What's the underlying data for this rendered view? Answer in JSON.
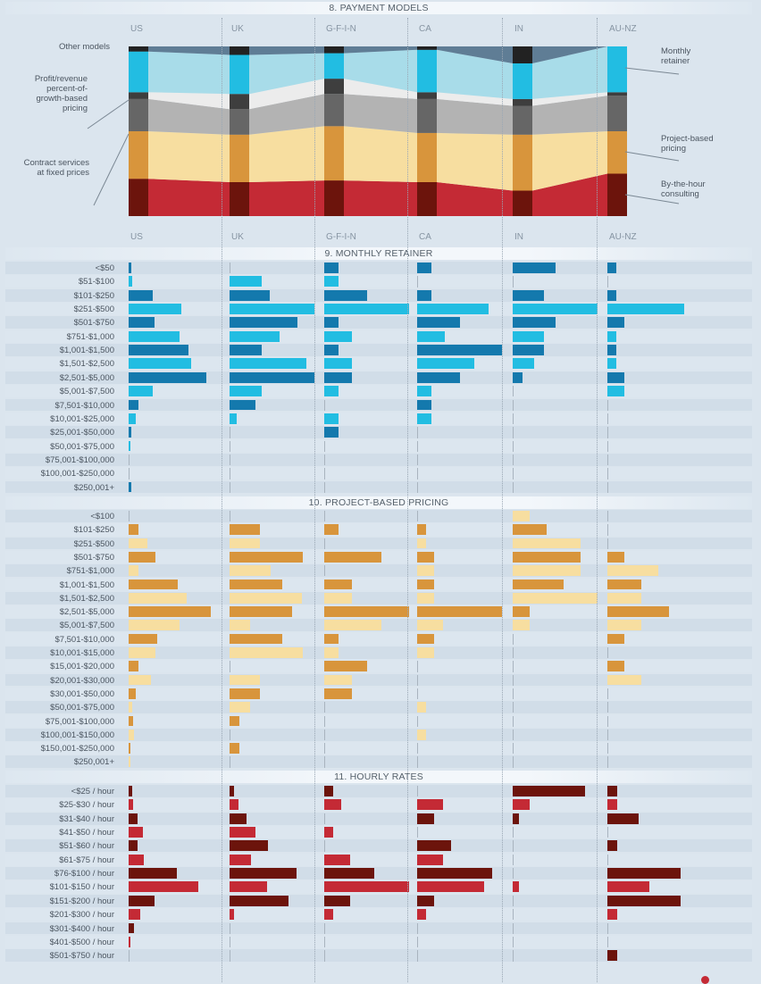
{
  "columns": [
    "US",
    "UK",
    "G-F-I-N",
    "CA",
    "IN",
    "AU-NZ"
  ],
  "colors": {
    "retainer_dark": "#1479ad",
    "retainer_light": "#22bde2",
    "project_dark": "#d8953c",
    "project_light": "#f7dea0",
    "hourly_dark": "#6c140c",
    "hourly_light": "#c42a35",
    "background": "#dbe5ee"
  },
  "payment_models": {
    "title": "8. PAYMENT MODELS",
    "labels": {
      "other": "Other models",
      "profit": [
        "Profit/revenue",
        "percent-of-",
        "growth-based",
        "pricing"
      ],
      "contract": [
        "Contract services",
        "at fixed prices"
      ],
      "monthly": [
        "Monthly",
        "retainer"
      ],
      "project": [
        "Project-based",
        "pricing"
      ],
      "hourly": [
        "By-the-hour",
        "consulting"
      ]
    }
  },
  "chart_data": [
    {
      "type": "area",
      "title": "8. PAYMENT MODELS",
      "categories": [
        "US",
        "UK",
        "G-F-I-N",
        "CA",
        "IN",
        "AU-NZ"
      ],
      "unit": "percent of respondents (estimated)",
      "series": [
        {
          "name": "By-the-hour consulting",
          "values": [
            22,
            20,
            21,
            20,
            15,
            25
          ]
        },
        {
          "name": "Project-based pricing",
          "values": [
            28,
            28,
            32,
            29,
            33,
            25
          ]
        },
        {
          "name": "Contract services at fixed prices",
          "values": [
            19,
            15,
            19,
            20,
            17,
            21
          ]
        },
        {
          "name": "Profit/revenue percent-of-growth-based pricing",
          "values": [
            4,
            9,
            9,
            4,
            4,
            2
          ]
        },
        {
          "name": "Monthly retainer",
          "values": [
            24,
            23,
            15,
            25,
            21,
            27
          ]
        },
        {
          "name": "Other models",
          "values": [
            3,
            5,
            4,
            2,
            10,
            0
          ]
        }
      ]
    },
    {
      "type": "bar",
      "title": "9. MONTHLY RETAINER",
      "categories": [
        "<$50",
        "$51-$100",
        "$101-$250",
        "$251-$500",
        "$501-$750",
        "$751-$1,000",
        "$1,001-$1,500",
        "$1,501-$2,500",
        "$2,501-$5,000",
        "$5,001-$7,500",
        "$7,501-$10,000",
        "$10,001-$25,000",
        "$25,001-$50,000",
        "$50,001-$75,000",
        "$75,001-$100,000",
        "$100,001-$250,000",
        "$250,001+"
      ],
      "unit": "relative share (0-100 of column max width)",
      "series": [
        {
          "name": "US",
          "values": [
            3,
            4,
            28,
            62,
            30,
            60,
            70,
            74,
            92,
            28,
            12,
            8,
            3,
            2,
            0,
            0,
            3
          ]
        },
        {
          "name": "UK",
          "values": [
            0,
            38,
            47,
            100,
            80,
            59,
            38,
            90,
            100,
            38,
            30,
            8,
            0,
            0,
            0,
            0,
            0
          ]
        },
        {
          "name": "G-F-I-N",
          "values": [
            17,
            17,
            50,
            100,
            17,
            33,
            17,
            33,
            33,
            17,
            0,
            17,
            17,
            0,
            0,
            0,
            0
          ]
        },
        {
          "name": "CA",
          "values": [
            17,
            0,
            17,
            84,
            50,
            33,
            100,
            67,
            50,
            17,
            17,
            17,
            0,
            0,
            0,
            0,
            0
          ]
        },
        {
          "name": "IN",
          "values": [
            50,
            0,
            37,
            100,
            50,
            37,
            37,
            25,
            12,
            0,
            0,
            0,
            0,
            0,
            0,
            0,
            0
          ]
        },
        {
          "name": "AU-NZ",
          "values": [
            10,
            0,
            10,
            90,
            20,
            10,
            10,
            10,
            20,
            20,
            0,
            0,
            0,
            0,
            0,
            0,
            0
          ]
        }
      ]
    },
    {
      "type": "bar",
      "title": "10. PROJECT-BASED PRICING",
      "categories": [
        "<$100",
        "$101-$250",
        "$251-$500",
        "$501-$750",
        "$751-$1,000",
        "$1,001-$1,500",
        "$1,501-$2,500",
        "$2,501-$5,000",
        "$5,001-$7,500",
        "$7,501-$10,000",
        "$10,001-$15,000",
        "$15,001-$20,000",
        "$20,001-$30,000",
        "$30,001-$50,000",
        "$50,001-$75,000",
        "$75,001-$100,000",
        "$100,001-$150,000",
        "$150,001-$250,000",
        "$250,001+"
      ],
      "unit": "relative share (0-100 of column max width)",
      "series": [
        {
          "name": "US",
          "values": [
            0,
            12,
            22,
            32,
            12,
            58,
            68,
            97,
            60,
            34,
            32,
            12,
            26,
            8,
            4,
            5,
            6,
            2,
            2
          ]
        },
        {
          "name": "UK",
          "values": [
            0,
            36,
            36,
            86,
            48,
            62,
            85,
            74,
            24,
            62,
            86,
            0,
            36,
            36,
            24,
            12,
            0,
            12,
            0
          ]
        },
        {
          "name": "G-F-I-N",
          "values": [
            0,
            17,
            0,
            67,
            0,
            33,
            33,
            100,
            67,
            17,
            17,
            50,
            33,
            33,
            0,
            0,
            0,
            0,
            0
          ]
        },
        {
          "name": "CA",
          "values": [
            0,
            10,
            10,
            20,
            20,
            20,
            20,
            100,
            30,
            20,
            20,
            0,
            0,
            0,
            10,
            0,
            10,
            0,
            0
          ]
        },
        {
          "name": "IN",
          "values": [
            20,
            40,
            80,
            80,
            80,
            60,
            100,
            20,
            20,
            0,
            0,
            0,
            0,
            0,
            0,
            0,
            0,
            0,
            0
          ]
        },
        {
          "name": "AU-NZ",
          "values": [
            0,
            0,
            0,
            20,
            60,
            40,
            40,
            73,
            40,
            20,
            0,
            20,
            40,
            0,
            0,
            0,
            0,
            0,
            0
          ]
        }
      ]
    },
    {
      "type": "bar",
      "title": "11. HOURLY RATES",
      "categories": [
        "<$25 / hour",
        "$25-$30 / hour",
        "$31-$40 / hour",
        "$41-$50 / hour",
        "$51-$60 / hour",
        "$61-$75 / hour",
        "$76-$100 / hour",
        "$101-$150 / hour",
        "$151-$200 / hour",
        "$201-$300 / hour",
        "$301-$400 / hour",
        "$401-$500 / hour",
        "$501-$750 / hour"
      ],
      "unit": "relative share (0-100 of column max width)",
      "series": [
        {
          "name": "US",
          "values": [
            4,
            5,
            10,
            17,
            11,
            18,
            57,
            82,
            30,
            14,
            6,
            2,
            0
          ]
        },
        {
          "name": "UK",
          "values": [
            5,
            10,
            20,
            30,
            45,
            25,
            79,
            44,
            69,
            5,
            0,
            0,
            0
          ]
        },
        {
          "name": "G-F-I-N",
          "values": [
            10,
            20,
            0,
            10,
            0,
            30,
            59,
            100,
            30,
            10,
            0,
            0,
            0
          ]
        },
        {
          "name": "CA",
          "values": [
            0,
            30,
            20,
            0,
            40,
            30,
            88,
            79,
            20,
            10,
            0,
            0,
            0
          ]
        },
        {
          "name": "IN",
          "values": [
            85,
            20,
            7,
            0,
            0,
            0,
            0,
            7,
            0,
            0,
            0,
            0,
            0
          ]
        },
        {
          "name": "AU-NZ",
          "values": [
            12,
            12,
            37,
            0,
            12,
            0,
            86,
            49,
            86,
            12,
            0,
            0,
            12
          ]
        }
      ]
    }
  ]
}
